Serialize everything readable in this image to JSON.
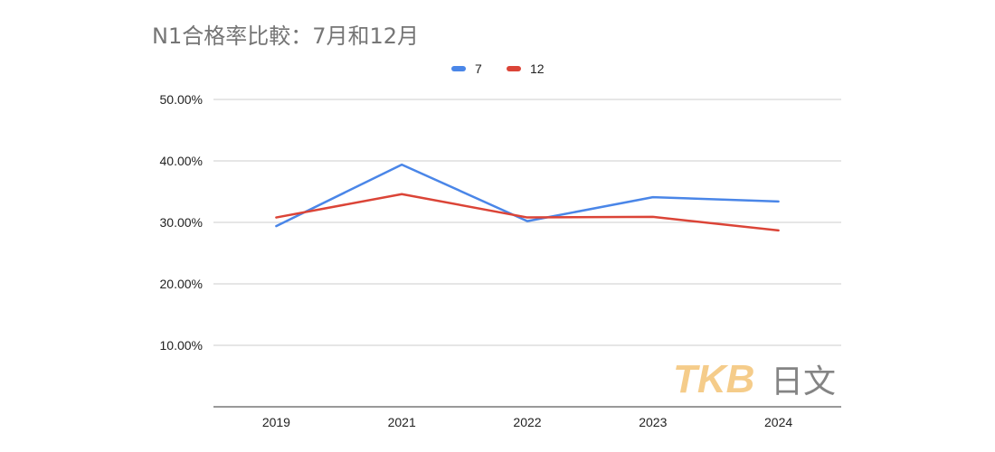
{
  "chart_data": {
    "type": "line",
    "title": "N1合格率比較：7月和12月",
    "categories": [
      "2019",
      "2021",
      "2022",
      "2023",
      "2024"
    ],
    "series": [
      {
        "name": "7",
        "values": [
          29.4,
          39.4,
          30.2,
          34.1,
          33.4
        ],
        "color": "#4a86e8"
      },
      {
        "name": "12",
        "values": [
          30.8,
          34.6,
          30.8,
          30.9,
          28.7
        ],
        "color": "#db4437"
      }
    ],
    "y_ticks": [
      "10.00%",
      "20.00%",
      "30.00%",
      "40.00%",
      "50.00%"
    ],
    "ylim": [
      0,
      50
    ],
    "grid": true,
    "legend_position": "top-center",
    "xlabel": "",
    "ylabel": ""
  },
  "watermark": {
    "text": "TKB日文",
    "colors": [
      "#f5c77e",
      "#777777"
    ]
  }
}
